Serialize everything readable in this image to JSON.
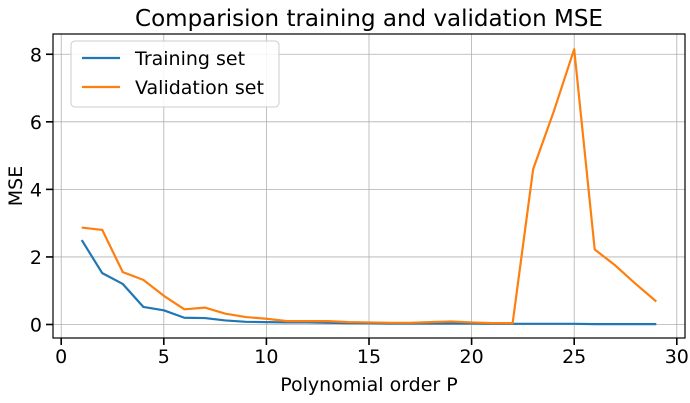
{
  "chart_data": {
    "type": "line",
    "title": "Comparision training and validation MSE",
    "xlabel": "Polynomial order P",
    "ylabel": "MSE",
    "xlim": [
      -0.4,
      30.4
    ],
    "ylim": [
      -0.4,
      8.6
    ],
    "xticks": [
      0,
      5,
      10,
      15,
      20,
      25,
      30
    ],
    "yticks": [
      0,
      2,
      4,
      6,
      8
    ],
    "grid": true,
    "legend_position": "top-left",
    "x": [
      1,
      2,
      3,
      4,
      5,
      6,
      7,
      8,
      9,
      10,
      11,
      12,
      13,
      14,
      15,
      16,
      17,
      18,
      19,
      20,
      21,
      22,
      23,
      24,
      25,
      26,
      27,
      28,
      29
    ],
    "series": [
      {
        "name": "Training set",
        "color": "#1f77b4",
        "values": [
          2.5,
          1.52,
          1.2,
          0.52,
          0.42,
          0.2,
          0.19,
          0.12,
          0.08,
          0.07,
          0.06,
          0.06,
          0.05,
          0.04,
          0.04,
          0.03,
          0.03,
          0.03,
          0.03,
          0.03,
          0.02,
          0.02,
          0.02,
          0.02,
          0.02,
          0.01,
          0.01,
          0.01,
          0.01
        ]
      },
      {
        "name": "Validation set",
        "color": "#ff7f0e",
        "values": [
          2.87,
          2.8,
          1.55,
          1.32,
          0.85,
          0.45,
          0.5,
          0.32,
          0.22,
          0.17,
          0.1,
          0.1,
          0.1,
          0.07,
          0.06,
          0.05,
          0.05,
          0.07,
          0.09,
          0.06,
          0.04,
          0.04,
          4.6,
          6.3,
          8.15,
          2.22,
          1.75,
          1.2,
          0.68
        ]
      }
    ]
  }
}
